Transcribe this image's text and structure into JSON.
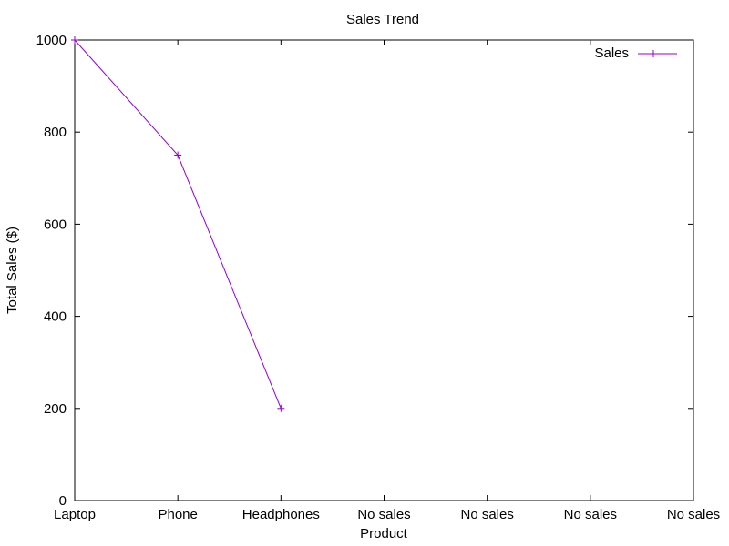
{
  "chart_data": {
    "type": "line",
    "title": "Sales Trend",
    "xlabel": "Product",
    "ylabel": "Total Sales ($)",
    "categories": [
      "Laptop",
      "Phone",
      "Headphones",
      "No sales",
      "No sales",
      "No sales",
      "No sales"
    ],
    "series": [
      {
        "name": "Sales",
        "values": [
          1000,
          750,
          200,
          null,
          null,
          null,
          null
        ],
        "color": "#9400d3",
        "marker": "plus"
      }
    ],
    "ylim": [
      0,
      1000
    ],
    "yticks": [
      0,
      200,
      400,
      600,
      800,
      1000
    ],
    "ytick_labels": [
      "0",
      "200",
      "400",
      "600",
      "800",
      "1000"
    ],
    "grid": false,
    "legend_position": "top-right"
  }
}
